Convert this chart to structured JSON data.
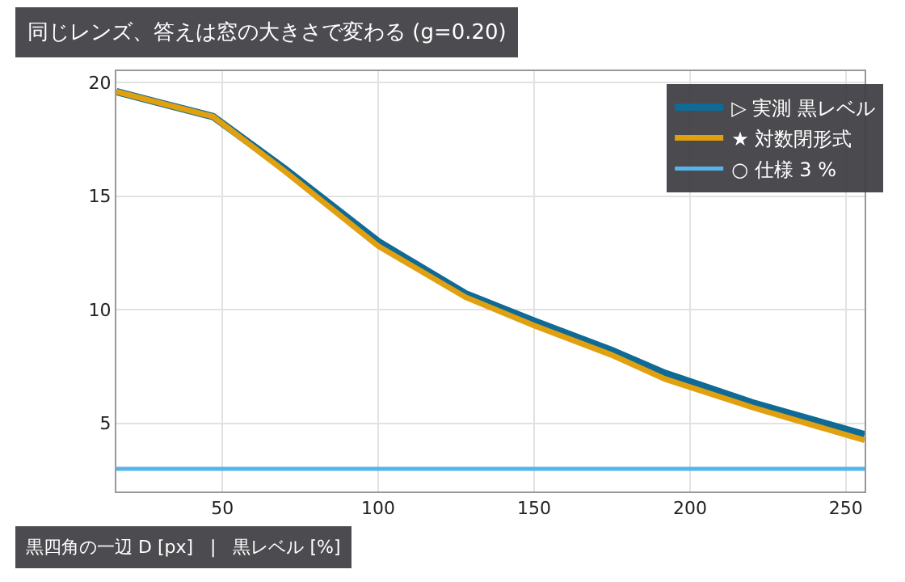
{
  "chart_data": {
    "type": "line",
    "title": "同じレンズ、答えは窓の大きさで変わる (g=0.20)",
    "xlabel": "黒四角の一辺 D [px]   |   黒レベル [%]",
    "xlim": [
      16,
      256
    ],
    "xticks": [
      50,
      100,
      150,
      200,
      250
    ],
    "ylim": [
      2,
      20.5
    ],
    "yticks": [
      5,
      10,
      15,
      20
    ],
    "grid": true,
    "legend": "top right",
    "marker": "none",
    "line_style": "solid",
    "series": [
      {
        "name": "▷ 実測 黒レベル",
        "color": "#0f6a96",
        "x": [
          16,
          30,
          47,
          70,
          100,
          128,
          150,
          175,
          192,
          220,
          256
        ],
        "values": [
          19.6,
          19.1,
          18.5,
          16.2,
          13.0,
          10.7,
          9.5,
          8.2,
          7.2,
          5.9,
          4.5
        ]
      },
      {
        "name": "★ 対数閉形式",
        "color": "#e0a010",
        "x": [
          16,
          30,
          47,
          70,
          100,
          128,
          150,
          175,
          192,
          220,
          256
        ],
        "values": [
          19.6,
          19.1,
          18.5,
          16.1,
          12.8,
          10.55,
          9.3,
          8.0,
          6.95,
          5.7,
          4.25
        ]
      },
      {
        "name": "○ 仕様 3 %",
        "color": "#56b4e9",
        "x": [
          16,
          256
        ],
        "values": [
          3,
          3
        ]
      }
    ]
  }
}
